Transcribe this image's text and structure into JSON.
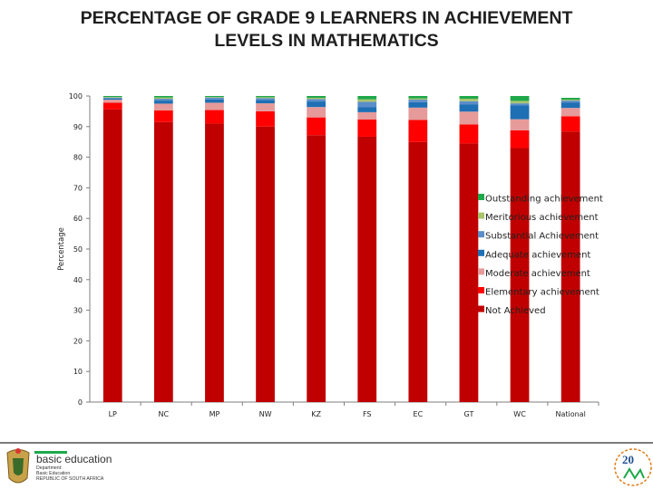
{
  "chart_data": {
    "type": "bar",
    "stacked": true,
    "title": "PERCENTAGE OF GRADE 9 LEARNERS IN ACHIEVEMENT LEVELS IN MATHEMATICS",
    "title_lines": [
      "PERCENTAGE OF GRADE 9 LEARNERS IN ACHIEVEMENT",
      "LEVELS IN MATHEMATICS"
    ],
    "ylabel": "Percentage",
    "xlabel": "",
    "ylim": [
      0,
      100
    ],
    "yticks": [
      "0",
      "10",
      "20",
      "30",
      "40",
      "50",
      "60",
      "70",
      "80",
      "90",
      "100"
    ],
    "grid": false,
    "legend_position": "right",
    "categories": [
      "LP",
      "NC",
      "MP",
      "NW",
      "KZ",
      "FS",
      "EC",
      "GT",
      "WC",
      "National"
    ],
    "series": [
      {
        "name": "Not Achieved",
        "color": "#c00000",
        "values": [
          95.6,
          91.5,
          91.0,
          90.0,
          87.2,
          86.7,
          85.0,
          84.5,
          83.0,
          88.4
        ]
      },
      {
        "name": "Elementary achievement",
        "color": "#ff0000",
        "values": [
          2.2,
          3.8,
          4.4,
          5.0,
          5.8,
          5.6,
          7.2,
          6.2,
          5.8,
          5.0
        ]
      },
      {
        "name": "Moderate achievement",
        "color": "#e69a9a",
        "values": [
          1.0,
          2.2,
          2.4,
          2.6,
          3.4,
          2.4,
          4.0,
          4.2,
          3.6,
          2.7
        ]
      },
      {
        "name": "Adequate achievement",
        "color": "#1f6fb4",
        "values": [
          0.4,
          1.0,
          1.1,
          1.1,
          1.8,
          1.6,
          1.8,
          2.4,
          4.6,
          1.8
        ]
      },
      {
        "name": "Substantial Achievement",
        "color": "#5b8dc9",
        "values": [
          0.3,
          0.6,
          0.6,
          0.6,
          0.8,
          1.8,
          0.8,
          1.0,
          0.6,
          0.6
        ]
      },
      {
        "name": "Meritorious achievement",
        "color": "#a9c46b",
        "values": [
          0.2,
          0.4,
          0.2,
          0.3,
          0.4,
          0.8,
          0.4,
          0.8,
          0.8,
          0.3
        ]
      },
      {
        "name": "Outstanding achievement",
        "color": "#1fa84a",
        "values": [
          0.3,
          0.5,
          0.3,
          0.4,
          0.6,
          1.1,
          0.8,
          0.9,
          1.6,
          0.6
        ]
      }
    ]
  },
  "footer": {
    "logo_text": "basic education",
    "logo_lines": [
      "Department:",
      "Basic Education",
      "REPUBLIC OF SOUTH AFRICA"
    ],
    "years_badge": "20"
  },
  "colors": {
    "axis": "#7f7f7f",
    "logo_green": "#1fa84a",
    "badge_orange": "#e07b17"
  }
}
